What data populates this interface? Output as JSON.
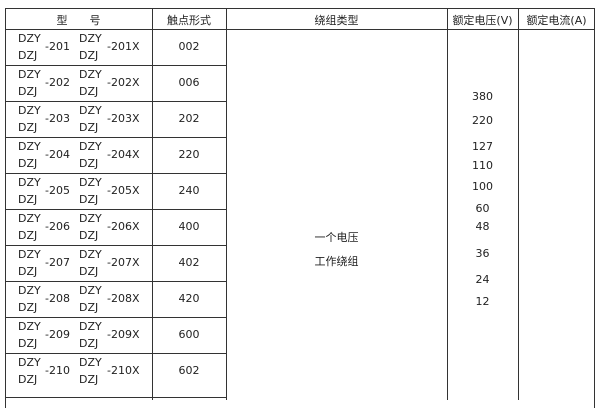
{
  "headers": {
    "model": "型　　号",
    "contact": "触点形式",
    "winding": "绕组类型",
    "voltage": "额定电压(V)",
    "current": "额定电流(A)"
  },
  "rows": [
    {
      "a": "DZY",
      "b": "DZJ",
      "n": "-201",
      "c": "DZY",
      "d": "DZJ",
      "x": "-201X",
      "contact": "002"
    },
    {
      "a": "DZY",
      "b": "DZJ",
      "n": "-202",
      "c": "DZY",
      "d": "DZJ",
      "x": "-202X",
      "contact": "006"
    },
    {
      "a": "DZY",
      "b": "DZJ",
      "n": "-203",
      "c": "DZY",
      "d": "DZJ",
      "x": "-203X",
      "contact": "202"
    },
    {
      "a": "DZY",
      "b": "DZJ",
      "n": "-204",
      "c": "DZY",
      "d": "DZJ",
      "x": "-204X",
      "contact": "220"
    },
    {
      "a": "DZY",
      "b": "DZJ",
      "n": "-205",
      "c": "DZY",
      "d": "DZJ",
      "x": "-205X",
      "contact": "240"
    },
    {
      "a": "DZY",
      "b": "DZJ",
      "n": "-206",
      "c": "DZY",
      "d": "DZJ",
      "x": "-206X",
      "contact": "400"
    },
    {
      "a": "DZY",
      "b": "DZJ",
      "n": "-207",
      "c": "DZY",
      "d": "DZJ",
      "x": "-207X",
      "contact": "402"
    },
    {
      "a": "DZY",
      "b": "DZJ",
      "n": "-208",
      "c": "DZY",
      "d": "DZJ",
      "x": "-208X",
      "contact": "420"
    },
    {
      "a": "DZY",
      "b": "DZJ",
      "n": "-209",
      "c": "DZY",
      "d": "DZJ",
      "x": "-209X",
      "contact": "600"
    },
    {
      "a": "DZY",
      "b": "DZJ",
      "n": "-210",
      "c": "DZY",
      "d": "DZJ",
      "x": "-210X",
      "contact": "602"
    }
  ],
  "winding": {
    "line1": "一个电压",
    "line2": "工作绕组"
  },
  "voltages": [
    "380",
    "220",
    "127",
    "110",
    "100",
    "60",
    "48",
    "36",
    "24",
    "12"
  ]
}
